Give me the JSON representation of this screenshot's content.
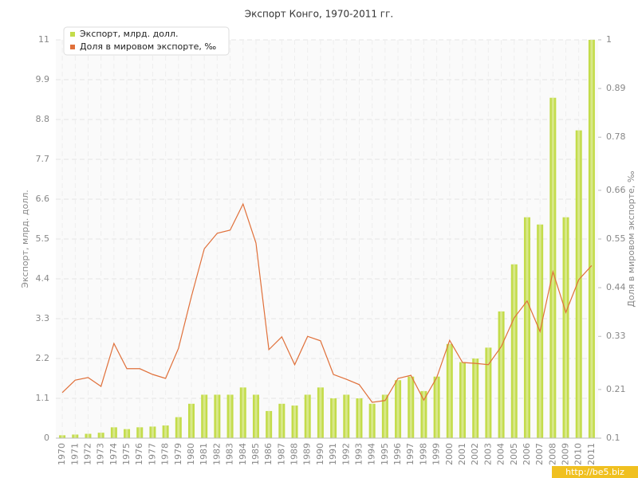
{
  "chart_data": {
    "type": "bar-line",
    "title": "Экспорт Конго, 1970-2011 гг.",
    "y_label": "Экспорт, млрд. долл.",
    "y2_label": "Доля в мировом экспорте, ‰",
    "watermark": "http://be5.biz",
    "categories": [
      "1970",
      "1971",
      "1972",
      "1973",
      "1974",
      "1975",
      "1976",
      "1977",
      "1978",
      "1979",
      "1980",
      "1981",
      "1982",
      "1983",
      "1984",
      "1985",
      "1986",
      "1987",
      "1988",
      "1989",
      "1990",
      "1991",
      "1992",
      "1993",
      "1994",
      "1995",
      "1996",
      "1997",
      "1998",
      "1999",
      "2000",
      "2001",
      "2002",
      "2003",
      "2004",
      "2005",
      "2006",
      "2007",
      "2008",
      "2009",
      "2010",
      "2011"
    ],
    "series": [
      {
        "name": "Экспорт, млрд. долл.",
        "color": "#c3dc4a",
        "type": "bar",
        "values": [
          0.08,
          0.1,
          0.12,
          0.15,
          0.3,
          0.25,
          0.3,
          0.32,
          0.35,
          0.58,
          0.95,
          1.2,
          1.2,
          1.2,
          1.4,
          1.2,
          0.75,
          0.95,
          0.9,
          1.2,
          1.4,
          1.1,
          1.2,
          1.1,
          0.95,
          1.2,
          1.6,
          1.7,
          1.3,
          1.7,
          2.6,
          2.1,
          2.2,
          2.5,
          3.5,
          4.8,
          6.1,
          5.9,
          9.4,
          6.1,
          8.5,
          11
        ]
      },
      {
        "name": "Доля в мировом экспорте, ‰",
        "color": "#e0703a",
        "type": "line",
        "axis": "y2",
        "values": [
          0.203,
          0.231,
          0.237,
          0.217,
          0.314,
          0.257,
          0.257,
          0.244,
          0.235,
          0.303,
          0.42,
          0.528,
          0.563,
          0.57,
          0.629,
          0.541,
          0.3,
          0.329,
          0.266,
          0.33,
          0.32,
          0.244,
          0.233,
          0.221,
          0.181,
          0.185,
          0.235,
          0.242,
          0.186,
          0.237,
          0.321,
          0.271,
          0.269,
          0.266,
          0.307,
          0.372,
          0.41,
          0.341,
          0.476,
          0.384,
          0.458,
          0.49
        ]
      }
    ],
    "ylim": [
      0,
      11
    ],
    "yticks": [
      0,
      1.1,
      2.2,
      3.3,
      4.4,
      5.5,
      6.6,
      7.7,
      8.8,
      9.9,
      11
    ],
    "y2lim": [
      0.1,
      1
    ],
    "y2ticks": [
      0.1,
      0.21,
      0.33,
      0.44,
      0.55,
      0.66,
      0.78,
      0.89,
      1
    ],
    "grid": true
  }
}
